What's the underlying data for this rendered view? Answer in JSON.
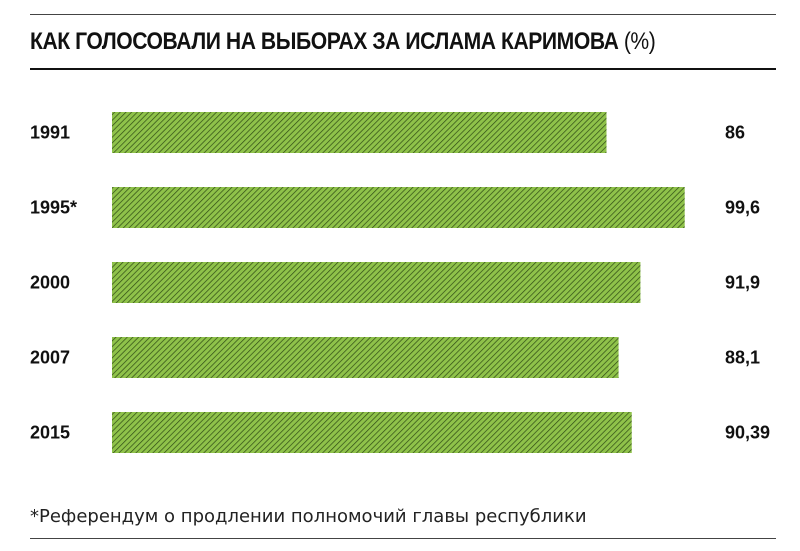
{
  "title": "КАК ГОЛОСОВАЛИ НА ВЫБОРАХ ЗА ИСЛАМА КАРИМОВА",
  "title_unit": "(%)",
  "footnote": "*Референдум о продлении полномочий главы республики",
  "colors": {
    "bar_fill": "#8fc24a",
    "bar_hatch": "#2e4a14",
    "text": "#111111"
  },
  "chart_data": {
    "type": "bar",
    "orientation": "horizontal",
    "categories": [
      "1991",
      "1995*",
      "2000",
      "2007",
      "2015"
    ],
    "values": [
      86,
      99.6,
      91.9,
      88.1,
      90.39
    ],
    "value_labels": [
      "86",
      "99,6",
      "91,9",
      "88,1",
      "90,39"
    ],
    "xlim": [
      0,
      100
    ],
    "grid": false,
    "legend": "none"
  }
}
